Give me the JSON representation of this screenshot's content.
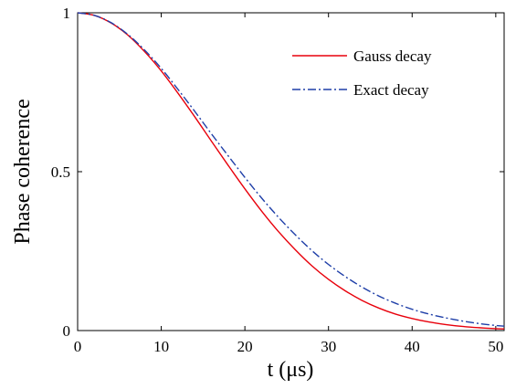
{
  "chart_data": {
    "type": "line",
    "xlabel": "t (μs)",
    "ylabel": "Phase coherence",
    "xlim": [
      0,
      51
    ],
    "ylim": [
      0,
      1
    ],
    "xticks": [
      "0",
      "10",
      "20",
      "30",
      "40",
      "50"
    ],
    "yticks": [
      "0",
      "0.5",
      "1"
    ],
    "grid": false,
    "legend": "top-right",
    "series": [
      {
        "name": "Gauss decay",
        "color": "#e8000b",
        "line_style": "solid",
        "x": [
          0,
          2,
          4,
          6,
          8,
          10,
          12,
          14,
          16,
          18,
          20,
          22,
          24,
          26,
          28,
          30,
          32,
          34,
          36,
          38,
          40,
          42,
          44,
          46,
          48,
          50,
          51
        ],
        "y": [
          1.0,
          0.992,
          0.968,
          0.93,
          0.878,
          0.817,
          0.747,
          0.673,
          0.596,
          0.52,
          0.446,
          0.376,
          0.312,
          0.255,
          0.204,
          0.161,
          0.125,
          0.095,
          0.071,
          0.052,
          0.038,
          0.027,
          0.019,
          0.013,
          0.009,
          0.006,
          0.005
        ]
      },
      {
        "name": "Exact decay",
        "color": "#1f3fa8",
        "line_style": "dash-dot",
        "x": [
          0,
          2,
          4,
          6,
          8,
          10,
          12,
          14,
          16,
          18,
          20,
          22,
          24,
          26,
          28,
          30,
          32,
          34,
          36,
          38,
          40,
          42,
          44,
          46,
          48,
          50,
          51
        ],
        "y": [
          1.0,
          0.992,
          0.969,
          0.932,
          0.883,
          0.825,
          0.759,
          0.69,
          0.619,
          0.55,
          0.482,
          0.417,
          0.357,
          0.302,
          0.252,
          0.208,
          0.17,
          0.137,
          0.109,
          0.086,
          0.067,
          0.052,
          0.04,
          0.03,
          0.022,
          0.016,
          0.014
        ]
      }
    ]
  }
}
